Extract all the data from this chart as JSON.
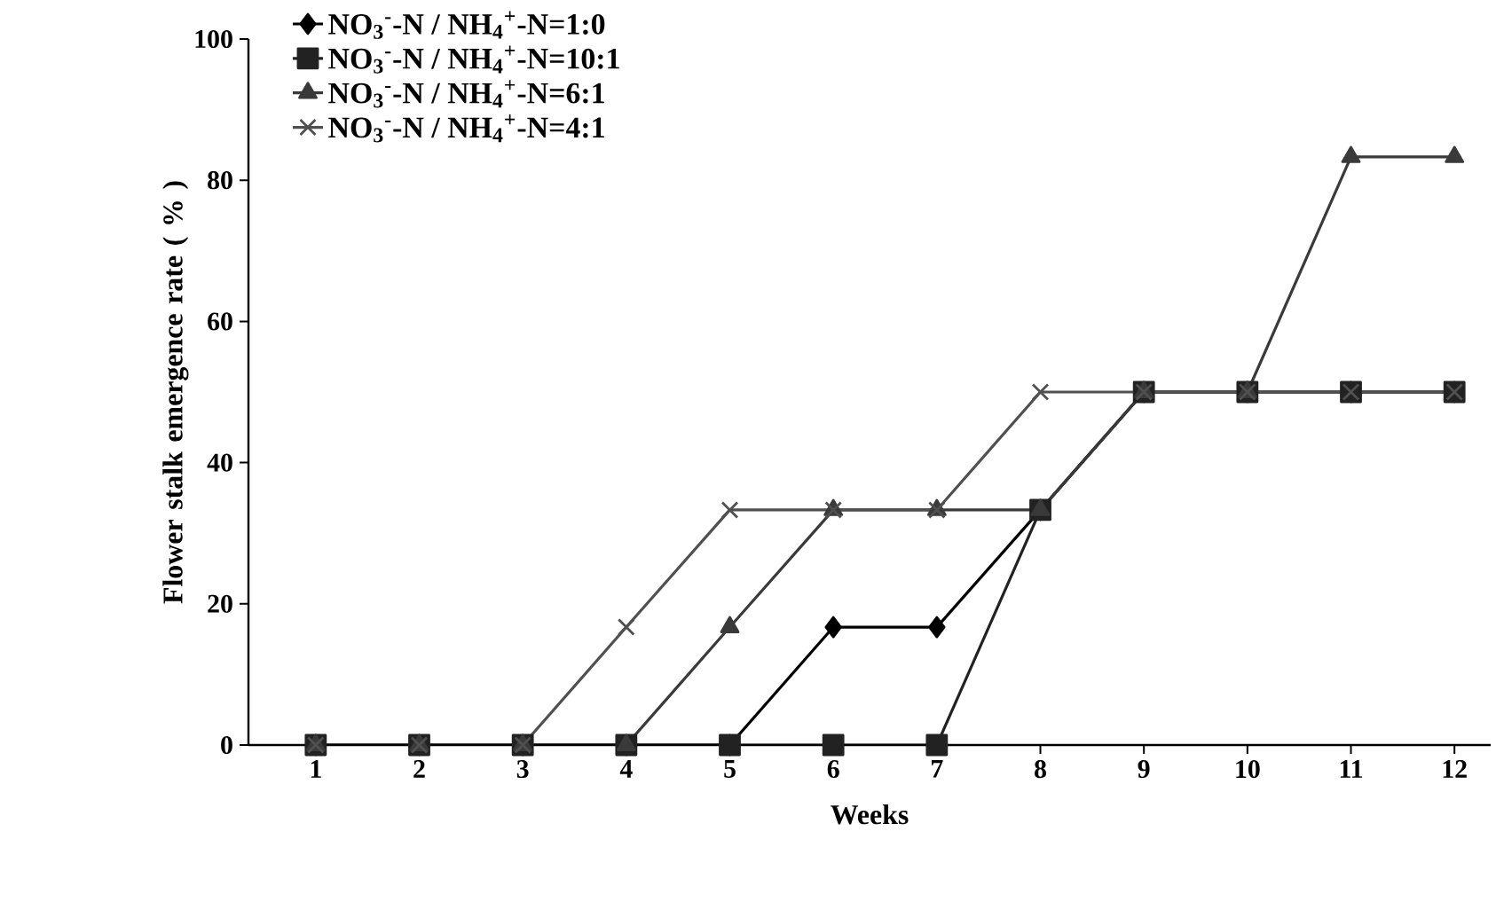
{
  "chart_data": {
    "type": "line",
    "xlabel": "Weeks",
    "ylabel": "Flower stalk emergence rate ( % )",
    "categories": [
      "1",
      "2",
      "3",
      "4",
      "5",
      "6",
      "7",
      "8",
      "9",
      "10",
      "11",
      "12"
    ],
    "ylim": [
      0,
      100
    ],
    "yticks": [
      0,
      20,
      40,
      60,
      80,
      100
    ],
    "grid": false,
    "legend": "top left",
    "line_style": "solid",
    "series": [
      {
        "name": "NO$_{3}$$^{-}$-N / NH$_{4}$$^{+}$-N=1:0",
        "color": "#000000",
        "marker": "diamond",
        "values": [
          0,
          0,
          0,
          0,
          0,
          16.7,
          16.7,
          33.3,
          50,
          50,
          50,
          50
        ]
      },
      {
        "name": "NO$_{3}$$^{-}$-N / NH$_{4}$$^{+}$-N=10:1",
        "color": "#222222",
        "marker": "square",
        "values": [
          0,
          0,
          0,
          0,
          0,
          0,
          0,
          33.3,
          50,
          50,
          50,
          50
        ]
      },
      {
        "name": "NO$_{3}$$^{-}$-N / NH$_{4}$$^{+}$-N=6:1",
        "color": "#3a3a3a",
        "marker": "triangle",
        "values": [
          0,
          0,
          0,
          0,
          16.7,
          33.3,
          33.3,
          33.3,
          50,
          50,
          83.3,
          83.3
        ]
      },
      {
        "name": "NO$_{3}$$^{-}$-N / NH$_{4}$$^{+}$-N=4:1",
        "color": "#505050",
        "marker": "cross",
        "values": [
          0,
          0,
          0,
          16.7,
          33.3,
          33.3,
          33.3,
          50,
          50,
          50,
          50,
          50
        ]
      }
    ]
  }
}
